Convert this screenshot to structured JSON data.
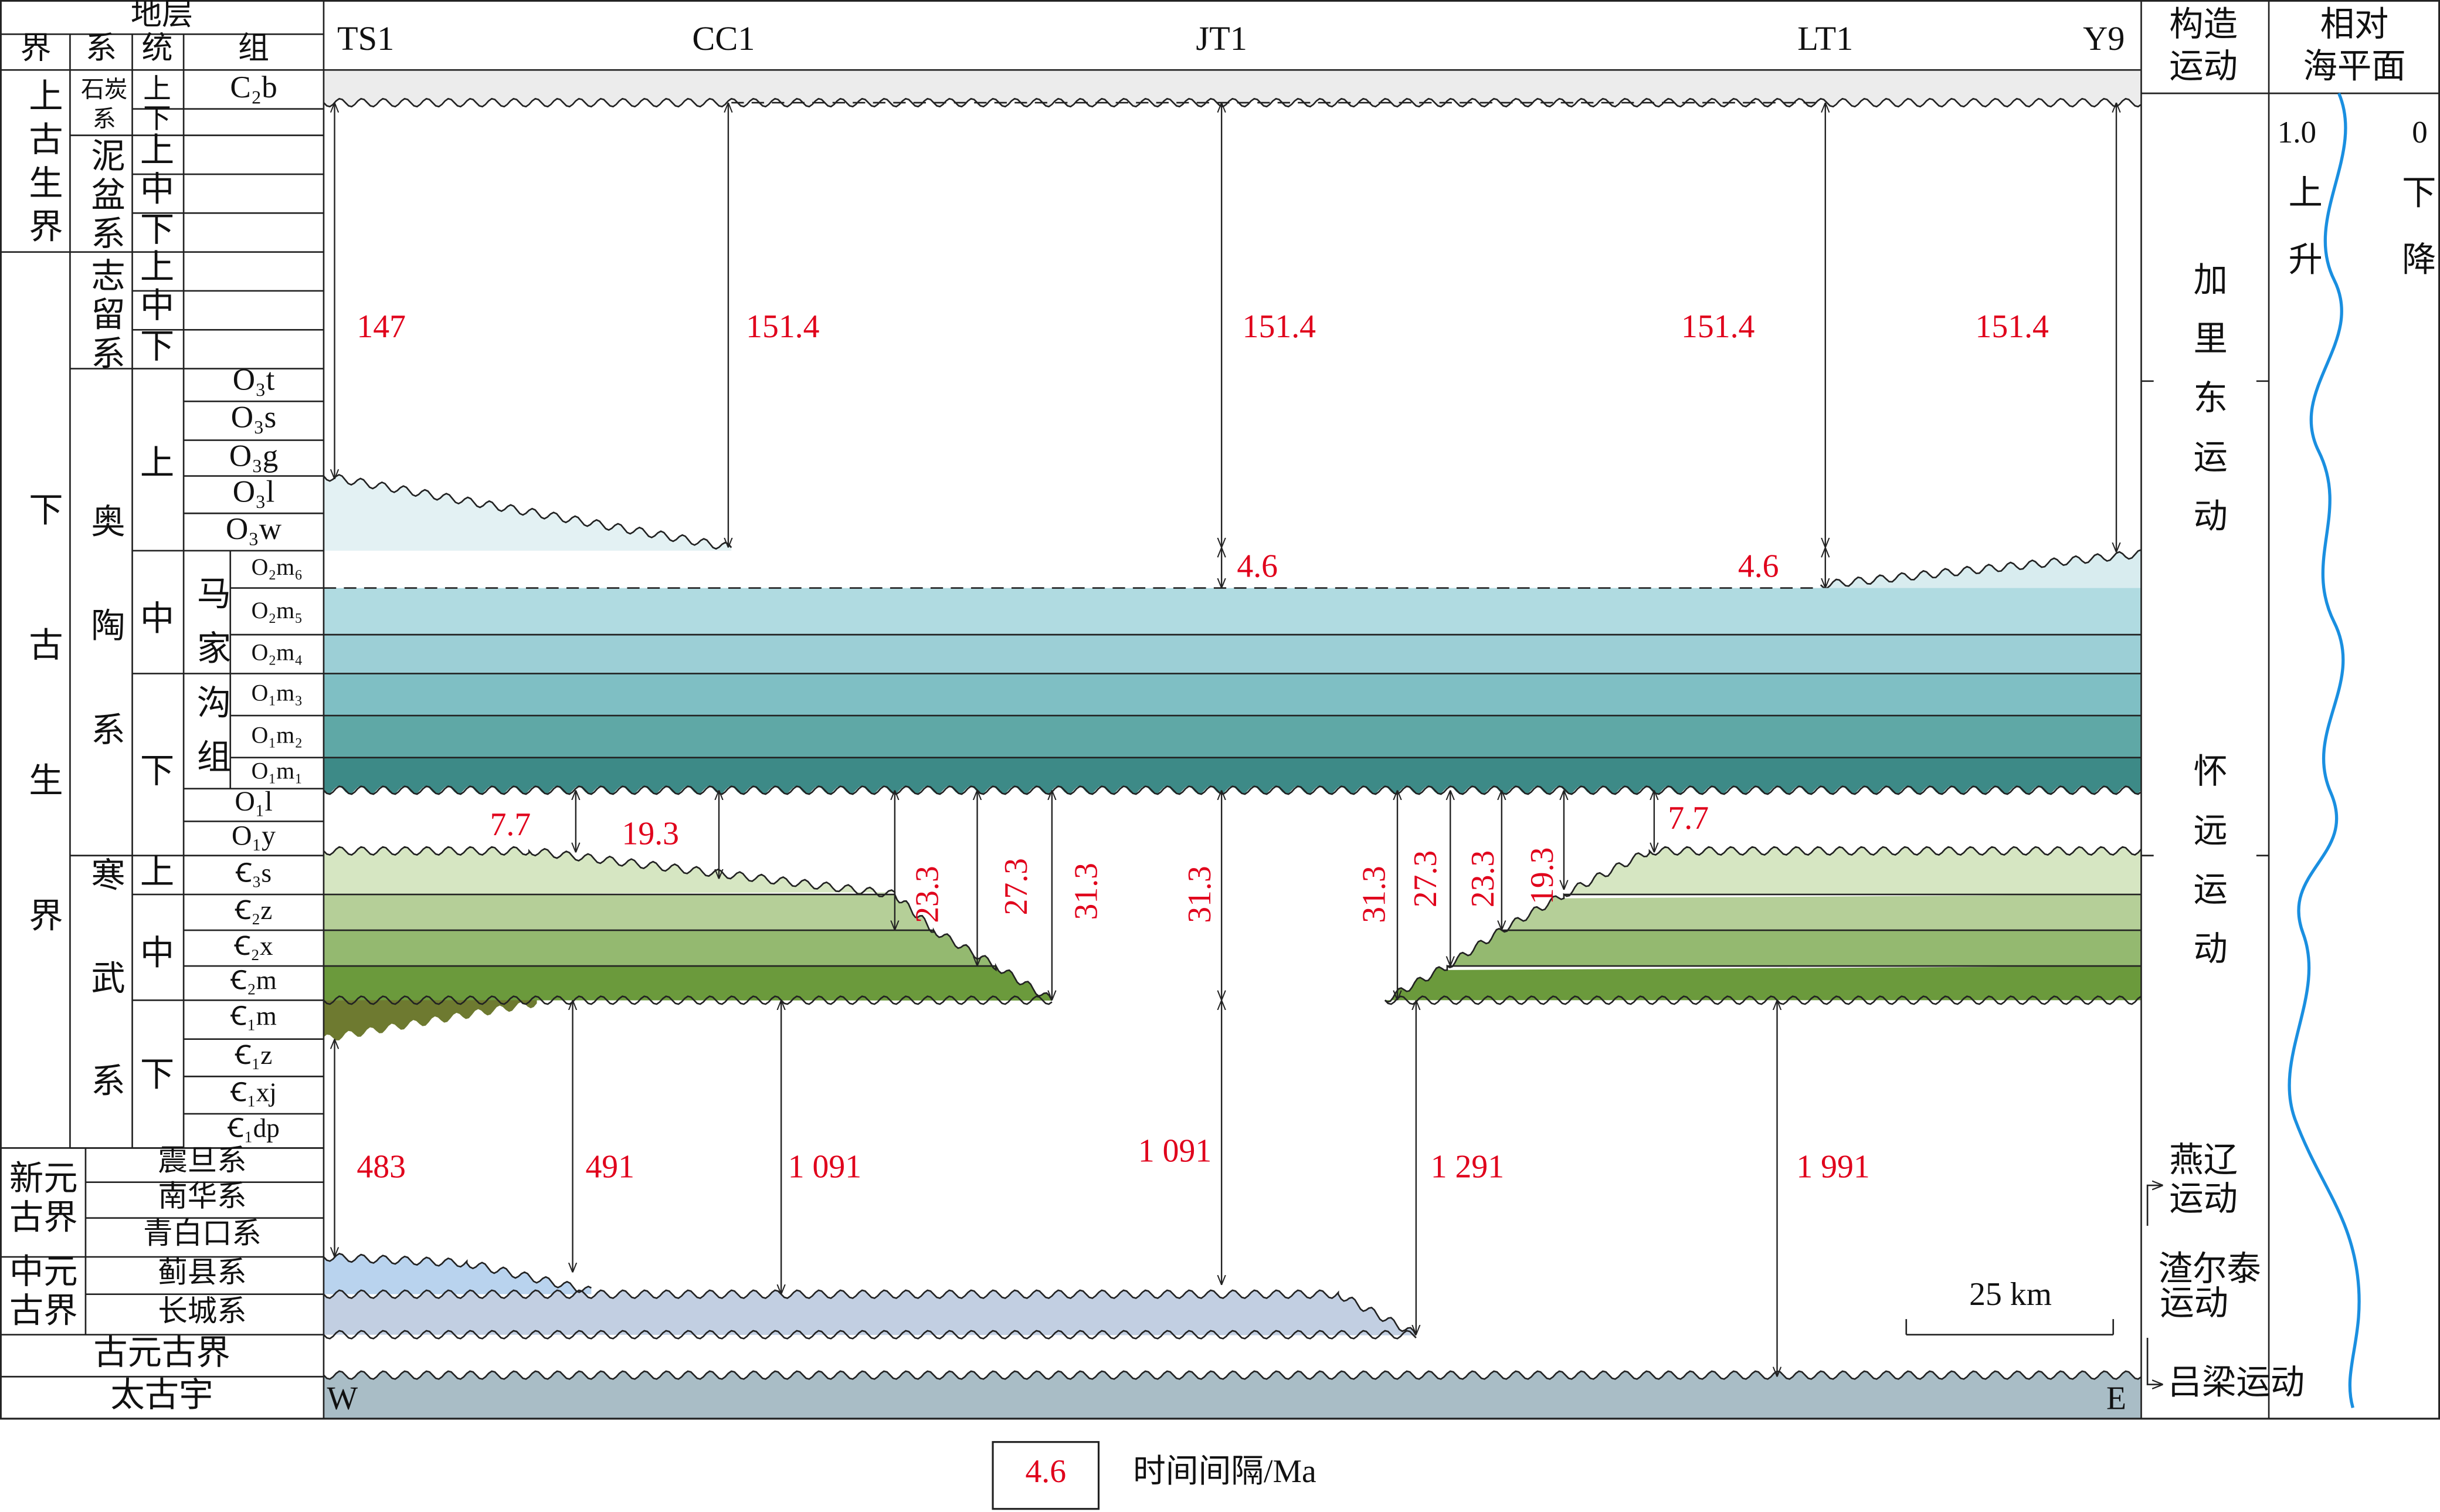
{
  "header": {
    "strata": "地层",
    "columns": [
      "界",
      "系",
      "统",
      "组"
    ],
    "wells": [
      "TS1",
      "CC1",
      "JT1",
      "LT1",
      "Y9"
    ],
    "tectonics": [
      "构造",
      "运动"
    ],
    "sea_level": [
      "相对",
      "海平面"
    ]
  },
  "strata": {
    "erathem": [
      "上古生界",
      "下古生界",
      [
        "新元",
        "古界"
      ],
      [
        "中元",
        "古界"
      ],
      "古元古界",
      "太古宇"
    ],
    "system": [
      [
        "石炭",
        "系"
      ],
      "泥盆系",
      "志留系",
      "奥陶系",
      "寒武系",
      "震旦系",
      "南华系",
      "青白口系",
      "蓟县系",
      "长城系"
    ],
    "series": [
      "上",
      "下",
      "上",
      "中",
      "下",
      "上",
      "中",
      "下",
      "上",
      "中",
      "下",
      "上",
      "中",
      "下"
    ],
    "formation": [
      "C₂b",
      "O₃t",
      "O₃s",
      "O₃g",
      "O₃l",
      "O₃w",
      "马家沟组",
      "O₂m₆",
      "O₂m₅",
      "O₂m₄",
      "O₁m₃",
      "O₁m₂",
      "O₁m₁",
      "O₁l",
      "O₁y",
      "Ꞓ₃s",
      "Ꞓ₂z",
      "Ꞓ₂x",
      "Ꞓ₂m",
      "Ꞓ₁m",
      "Ꞓ₁z",
      "Ꞓ₁xj",
      "Ꞓ₁dp"
    ]
  },
  "gaps": {
    "upper": [
      "147",
      "151.4",
      "151.4",
      "151.4",
      "151.4",
      "4.6",
      "4.6"
    ],
    "cambrian": [
      "7.7",
      "19.3",
      "23.3",
      "27.3",
      "31.3",
      "31.3",
      "31.3",
      "27.3",
      "23.3",
      "19.3",
      "7.7"
    ],
    "precambrian": [
      "483",
      "491",
      "1 091",
      "1 091",
      "1 291",
      "1 991"
    ]
  },
  "scale_bar": "25 km",
  "west": "W",
  "east": "E",
  "tectonic_events": [
    "加里东运动",
    "怀远运动",
    [
      "燕辽",
      "运动"
    ],
    [
      "渣尔泰",
      "运动"
    ],
    "吕梁运动"
  ],
  "sea_level_curve": {
    "left": "1.0",
    "right": "0",
    "rise": "上升",
    "fall": "下降"
  },
  "legend": {
    "sample": "4.6",
    "label": "时间间隔/Ma"
  }
}
